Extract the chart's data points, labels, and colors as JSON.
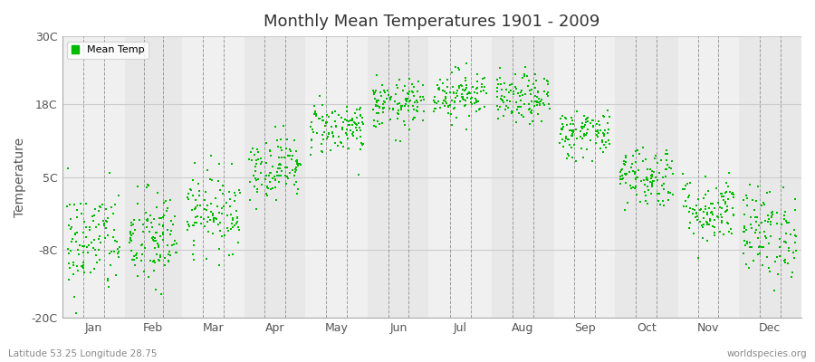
{
  "title": "Monthly Mean Temperatures 1901 - 2009",
  "ylabel": "Temperature",
  "subtitle_left": "Latitude 53.25 Longitude 28.75",
  "subtitle_right": "worldspecies.org",
  "legend_label": "Mean Temp",
  "dot_color": "#00bb00",
  "bg_color": "#ffffff",
  "plot_bg_color": "#e8e8e8",
  "alt_band_color": "#f0f0f0",
  "ylim": [
    -20,
    30
  ],
  "yticks": [
    -20,
    -8,
    5,
    18,
    30
  ],
  "ytick_labels": [
    "-20C",
    "-8C",
    "5C",
    "18C",
    "30C"
  ],
  "months": [
    "Jan",
    "Feb",
    "Mar",
    "Apr",
    "May",
    "Jun",
    "Jul",
    "Aug",
    "Sep",
    "Oct",
    "Nov",
    "Dec"
  ],
  "mean_temps": [
    -6.5,
    -6.2,
    -1.0,
    6.8,
    13.8,
    17.8,
    19.8,
    18.8,
    12.8,
    5.2,
    -0.8,
    -4.8
  ],
  "std_temps": [
    4.8,
    4.5,
    3.5,
    2.8,
    2.4,
    2.2,
    2.2,
    2.2,
    2.2,
    2.8,
    3.0,
    4.0
  ],
  "n_years": 109,
  "seed": 42,
  "marker_size": 3,
  "dpi": 100,
  "figsize": [
    9.0,
    4.0
  ]
}
